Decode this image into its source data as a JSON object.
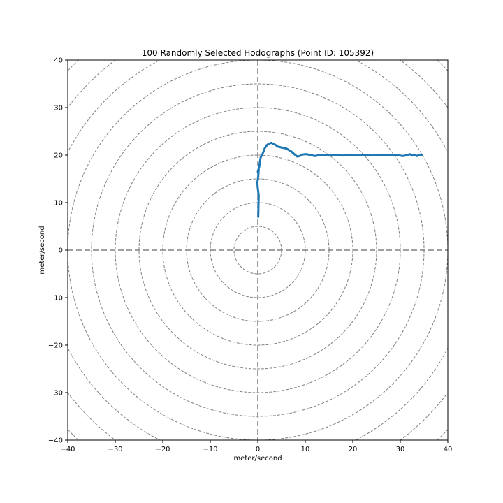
{
  "chart_data": {
    "type": "line",
    "title": "100 Randomly Selected Hodographs (Point ID: 105392)",
    "xlabel": "meter/second",
    "ylabel": "meter/second",
    "xlim": [
      -40,
      40
    ],
    "ylim": [
      -40,
      40
    ],
    "xticks": [
      -40,
      -30,
      -20,
      -10,
      0,
      10,
      20,
      30,
      40
    ],
    "yticks": [
      -40,
      -30,
      -20,
      -10,
      0,
      10,
      20,
      30,
      40
    ],
    "xtick_labels": [
      "−40",
      "−30",
      "−20",
      "−10",
      "0",
      "10",
      "20",
      "30",
      "40"
    ],
    "ytick_labels": [
      "−40",
      "−30",
      "−20",
      "−10",
      "0",
      "10",
      "20",
      "30",
      "40"
    ],
    "grid": "concentric-circles",
    "ring_radii": [
      5,
      10,
      15,
      20,
      25,
      30,
      35,
      40,
      45,
      50,
      55
    ],
    "colors": {
      "series": "#1f77b4",
      "grid": "#808080",
      "axes": "#000000"
    },
    "series": [
      {
        "x": [
          0.1,
          0.15,
          0.2,
          0.0,
          -0.1,
          0.1,
          0.2,
          0.0,
          0.3,
          0.6,
          0.9,
          1.5,
          2.0,
          2.8,
          3.5,
          4.2,
          5.0,
          6.0,
          7.0,
          7.8,
          8.3,
          8.8,
          9.3,
          10.2,
          11.2,
          12.0,
          13.0,
          14.0,
          15.0,
          16.5,
          18.0,
          19.5,
          21.0,
          22.5,
          24.0,
          25.5,
          27.0,
          28.5,
          29.5,
          30.5,
          31.5,
          32.0,
          32.5,
          33.0,
          33.5,
          34.0,
          34.6
        ],
        "y": [
          7.0,
          9.5,
          11.5,
          13.0,
          14.2,
          15.5,
          17.0,
          16.5,
          17.5,
          19.5,
          20.0,
          21.5,
          22.2,
          22.6,
          22.3,
          21.8,
          21.6,
          21.4,
          20.8,
          20.1,
          19.7,
          19.8,
          20.1,
          20.2,
          20.0,
          19.8,
          20.0,
          20.0,
          19.9,
          20.0,
          19.9,
          20.0,
          19.9,
          20.0,
          19.9,
          20.0,
          20.0,
          20.1,
          20.0,
          19.8,
          20.0,
          20.2,
          19.9,
          20.1,
          19.8,
          20.1,
          20.0
        ]
      }
    ]
  }
}
